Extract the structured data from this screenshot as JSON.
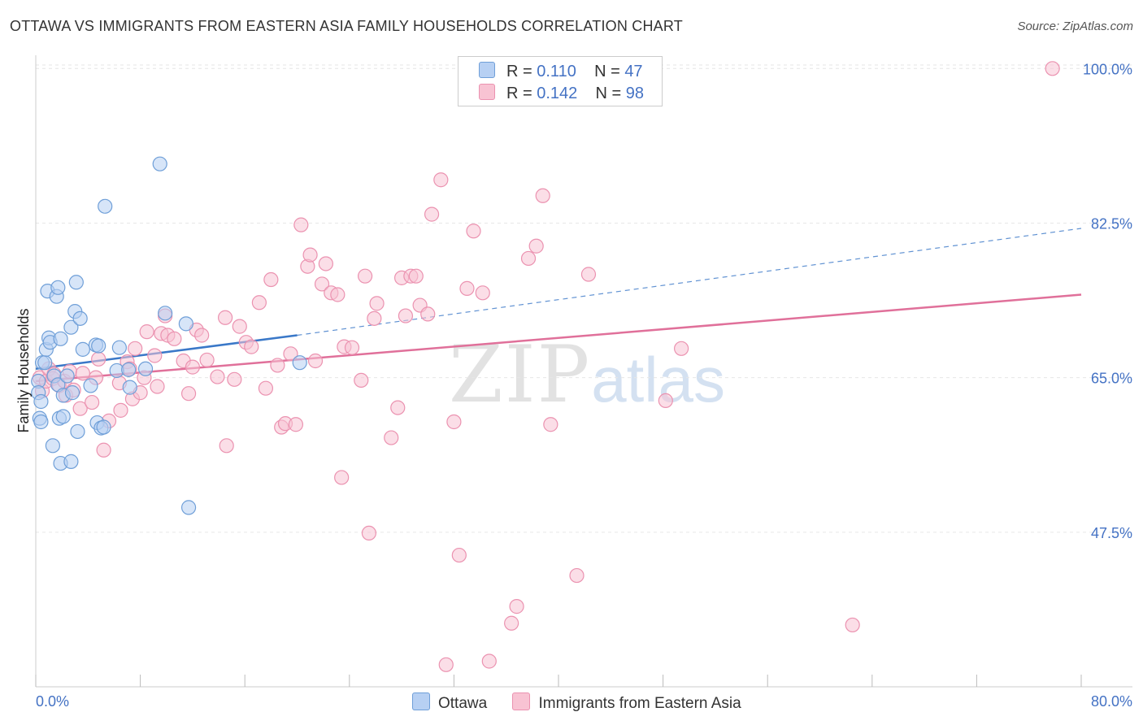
{
  "title": "OTTAWA VS IMMIGRANTS FROM EASTERN ASIA FAMILY HOUSEHOLDS CORRELATION CHART",
  "source": "Source: ZipAtlas.com",
  "watermark": {
    "zip": "ZIP",
    "atlas": "atlas"
  },
  "legend": {
    "r_label": "R =",
    "n_label": "N =",
    "rows": [
      {
        "r": "0.110",
        "n": "47"
      },
      {
        "r": "0.142",
        "n": "98"
      }
    ]
  },
  "colors": {
    "ottawa_fill": "#b7d0f3",
    "ottawa_stroke": "#6f9fd8",
    "ottawa_line": "#3a78c8",
    "immigrants_fill": "#f8c3d3",
    "immigrants_stroke": "#eb92b0",
    "immigrants_line": "#e0709a",
    "grid": "#e6e6e6",
    "tick_text": "#4472c4"
  },
  "chart_data": {
    "type": "scatter",
    "title": "OTTAWA VS IMMIGRANTS FROM EASTERN ASIA FAMILY HOUSEHOLDS CORRELATION CHART",
    "xlabel": "",
    "ylabel": "Family Households",
    "xlim": [
      0,
      80
    ],
    "ylim": [
      30,
      101.5
    ],
    "x_tick_labels": [
      "0.0%",
      "80.0%"
    ],
    "y_ticks": [
      47.5,
      65.0,
      82.5,
      100.0
    ],
    "y_tick_labels": [
      "47.5%",
      "65.0%",
      "82.5%",
      "100.0%"
    ],
    "grid": "horizontal dashed",
    "legend_position": "top-center",
    "series": [
      {
        "name": "Ottawa",
        "r": 0.11,
        "n": 47,
        "trend": {
          "x0": 0,
          "y0": 66.0,
          "x1": 20,
          "y1": 69.8,
          "dashed_to": {
            "x": 80,
            "y": 81.9
          }
        },
        "points": [
          [
            0.2,
            64.6
          ],
          [
            0.2,
            63.3
          ],
          [
            0.3,
            60.4
          ],
          [
            0.4,
            60.0
          ],
          [
            0.4,
            62.3
          ],
          [
            0.5,
            66.7
          ],
          [
            0.7,
            66.7
          ],
          [
            0.8,
            68.2
          ],
          [
            0.9,
            74.8
          ],
          [
            1.0,
            69.5
          ],
          [
            1.1,
            69.0
          ],
          [
            1.3,
            57.3
          ],
          [
            1.4,
            65.2
          ],
          [
            1.6,
            74.2
          ],
          [
            1.7,
            75.2
          ],
          [
            1.7,
            64.2
          ],
          [
            1.8,
            60.4
          ],
          [
            1.9,
            69.4
          ],
          [
            1.9,
            55.3
          ],
          [
            2.1,
            63.0
          ],
          [
            2.1,
            60.6
          ],
          [
            2.4,
            65.2
          ],
          [
            2.7,
            55.5
          ],
          [
            2.7,
            70.7
          ],
          [
            2.8,
            63.3
          ],
          [
            3.0,
            72.5
          ],
          [
            3.1,
            75.8
          ],
          [
            3.2,
            58.9
          ],
          [
            3.4,
            71.7
          ],
          [
            3.6,
            68.2
          ],
          [
            4.2,
            64.1
          ],
          [
            4.6,
            68.7
          ],
          [
            4.7,
            59.9
          ],
          [
            4.8,
            68.6
          ],
          [
            5.0,
            59.3
          ],
          [
            5.2,
            59.4
          ],
          [
            5.3,
            84.4
          ],
          [
            6.2,
            65.8
          ],
          [
            6.4,
            68.4
          ],
          [
            7.1,
            65.9
          ],
          [
            7.2,
            63.9
          ],
          [
            9.5,
            89.2
          ],
          [
            9.9,
            72.3
          ],
          [
            11.5,
            71.1
          ],
          [
            11.7,
            50.3
          ],
          [
            20.2,
            66.7
          ],
          [
            8.4,
            66.0
          ]
        ]
      },
      {
        "name": "Immigrants from Eastern Asia",
        "r": 0.142,
        "n": 98,
        "trend": {
          "x0": 0,
          "y0": 64.6,
          "x1": 80,
          "y1": 74.4
        },
        "points": [
          [
            0.3,
            65.0
          ],
          [
            0.5,
            63.5
          ],
          [
            0.8,
            64.6
          ],
          [
            1.0,
            66.0
          ],
          [
            1.3,
            64.9
          ],
          [
            1.4,
            65.4
          ],
          [
            1.8,
            64.1
          ],
          [
            2.2,
            64.6
          ],
          [
            2.3,
            63.0
          ],
          [
            2.6,
            65.7
          ],
          [
            2.9,
            63.6
          ],
          [
            3.4,
            61.5
          ],
          [
            3.6,
            65.5
          ],
          [
            4.3,
            62.2
          ],
          [
            4.6,
            65.0
          ],
          [
            4.8,
            67.1
          ],
          [
            5.2,
            56.8
          ],
          [
            5.6,
            60.1
          ],
          [
            6.4,
            64.4
          ],
          [
            6.5,
            61.3
          ],
          [
            7.0,
            66.8
          ],
          [
            7.2,
            66.0
          ],
          [
            7.4,
            62.6
          ],
          [
            7.6,
            68.3
          ],
          [
            8.0,
            63.3
          ],
          [
            8.3,
            65.0
          ],
          [
            8.5,
            70.2
          ],
          [
            9.1,
            67.5
          ],
          [
            9.3,
            64.0
          ],
          [
            9.6,
            70.0
          ],
          [
            9.9,
            72.0
          ],
          [
            10.1,
            69.8
          ],
          [
            10.6,
            69.4
          ],
          [
            11.3,
            66.9
          ],
          [
            11.7,
            63.2
          ],
          [
            12.0,
            66.2
          ],
          [
            12.3,
            70.4
          ],
          [
            12.7,
            69.8
          ],
          [
            13.1,
            67.0
          ],
          [
            13.9,
            65.1
          ],
          [
            14.5,
            71.8
          ],
          [
            14.6,
            57.3
          ],
          [
            15.2,
            64.8
          ],
          [
            15.6,
            70.8
          ],
          [
            16.1,
            69.0
          ],
          [
            16.5,
            68.5
          ],
          [
            17.1,
            73.5
          ],
          [
            17.6,
            63.8
          ],
          [
            18.0,
            76.1
          ],
          [
            18.5,
            66.4
          ],
          [
            18.8,
            59.4
          ],
          [
            19.1,
            59.8
          ],
          [
            19.5,
            67.7
          ],
          [
            19.9,
            59.7
          ],
          [
            20.3,
            82.3
          ],
          [
            20.8,
            77.6
          ],
          [
            21.0,
            78.9
          ],
          [
            21.4,
            66.9
          ],
          [
            21.9,
            75.6
          ],
          [
            22.2,
            77.9
          ],
          [
            22.6,
            74.6
          ],
          [
            23.1,
            74.4
          ],
          [
            23.4,
            53.7
          ],
          [
            23.6,
            68.5
          ],
          [
            24.2,
            68.4
          ],
          [
            24.9,
            64.7
          ],
          [
            25.2,
            76.5
          ],
          [
            25.5,
            47.4
          ],
          [
            25.9,
            71.7
          ],
          [
            26.1,
            73.4
          ],
          [
            27.2,
            58.2
          ],
          [
            27.7,
            61.6
          ],
          [
            28.0,
            76.3
          ],
          [
            28.3,
            72.0
          ],
          [
            28.7,
            76.5
          ],
          [
            29.1,
            76.5
          ],
          [
            29.4,
            73.2
          ],
          [
            30.0,
            72.2
          ],
          [
            30.3,
            83.5
          ],
          [
            31.0,
            87.4
          ],
          [
            31.4,
            32.5
          ],
          [
            32.0,
            60.0
          ],
          [
            32.4,
            44.9
          ],
          [
            33.0,
            75.1
          ],
          [
            33.5,
            81.6
          ],
          [
            34.2,
            74.6
          ],
          [
            34.7,
            32.9
          ],
          [
            36.4,
            37.2
          ],
          [
            36.8,
            39.1
          ],
          [
            37.7,
            78.5
          ],
          [
            38.3,
            79.9
          ],
          [
            38.8,
            85.6
          ],
          [
            39.4,
            59.7
          ],
          [
            41.4,
            42.6
          ],
          [
            42.3,
            76.7
          ],
          [
            48.2,
            62.4
          ],
          [
            49.4,
            68.3
          ],
          [
            62.5,
            37.0
          ],
          [
            77.8,
            100.0
          ]
        ]
      }
    ]
  },
  "bottom_legend": [
    {
      "label": "Ottawa"
    },
    {
      "label": "Immigrants from Eastern Asia"
    }
  ]
}
